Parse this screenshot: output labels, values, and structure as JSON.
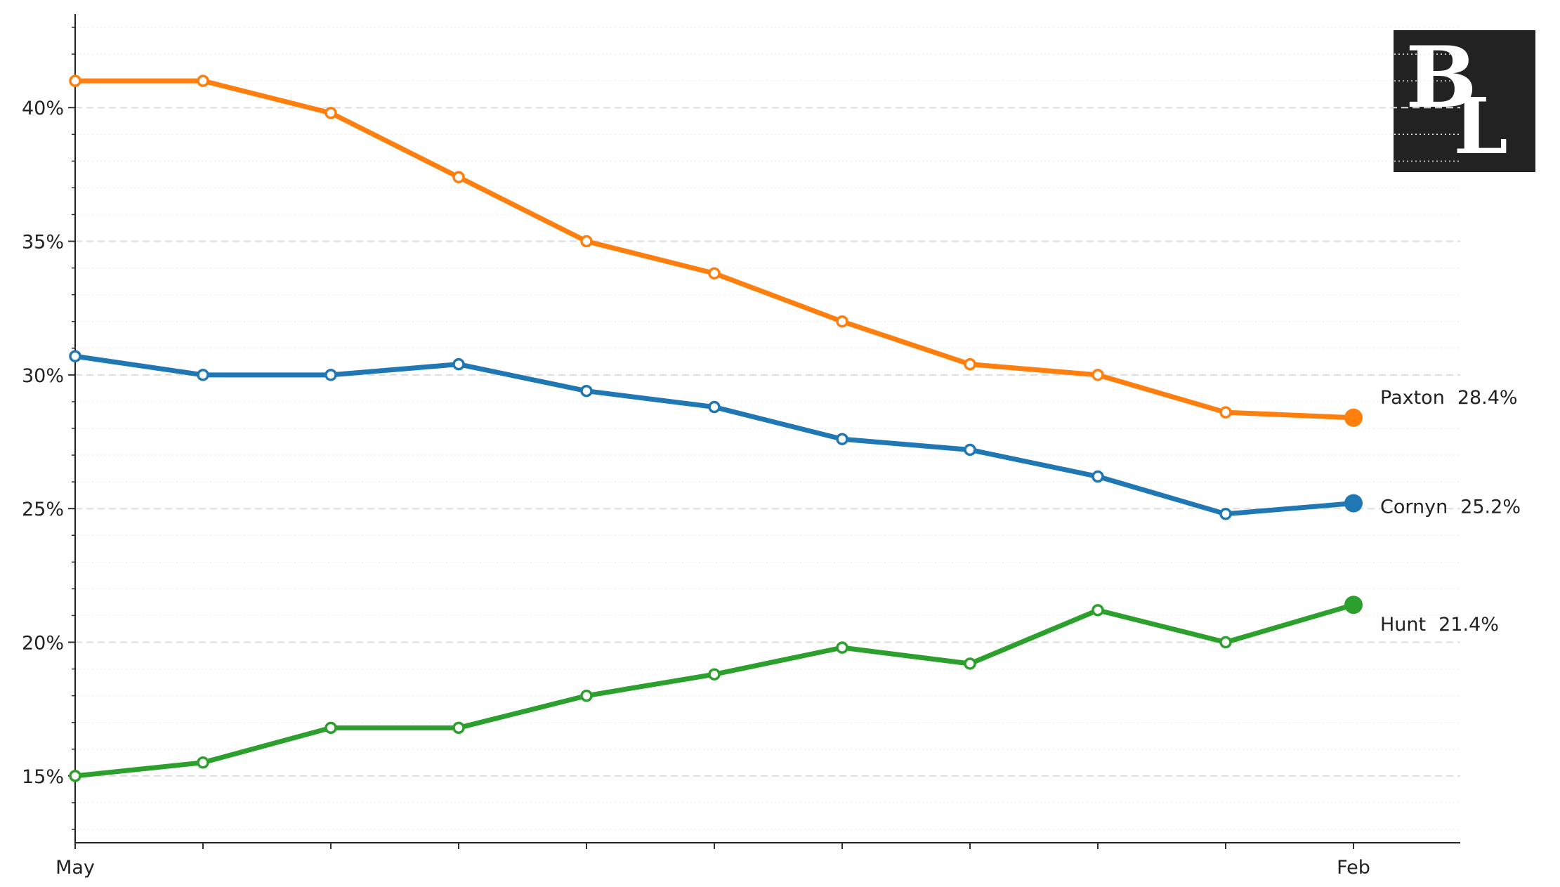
{
  "chart_data": {
    "type": "line",
    "categories": [
      "May",
      null,
      null,
      null,
      null,
      null,
      null,
      null,
      null,
      null,
      "Feb"
    ],
    "series": [
      {
        "name": "Paxton",
        "color": "#ff7f0e",
        "values": [
          41,
          41,
          39.8,
          37.4,
          35,
          33.8,
          32,
          30.4,
          30,
          28.6,
          28.4
        ],
        "value_labels": [
          null,
          null,
          null,
          null,
          null,
          null,
          null,
          null,
          null,
          null,
          "28.4%"
        ]
      },
      {
        "name": "Cornyn",
        "color": "#1f77b4",
        "values": [
          30.7,
          30,
          30,
          30.4,
          29.4,
          28.8,
          27.6,
          27.2,
          26.2,
          24.8,
          25.2
        ],
        "value_labels": [
          null,
          null,
          null,
          null,
          null,
          null,
          null,
          null,
          null,
          null,
          "25.2%"
        ]
      },
      {
        "name": "Hunt",
        "color": "#2ca02c",
        "values": [
          15,
          15.5,
          16.8,
          16.8,
          18,
          18.8,
          19.8,
          19.2,
          21.2,
          20,
          21.4
        ],
        "value_labels": [
          null,
          null,
          null,
          null,
          null,
          null,
          null,
          null,
          null,
          null,
          "21.4%"
        ]
      }
    ],
    "ylim": [
      12.5,
      43.5
    ],
    "yticks": [
      {
        "value": 15,
        "label": "15%"
      },
      {
        "value": 20,
        "label": "20%"
      },
      {
        "value": 25,
        "label": "25%"
      },
      {
        "value": 30,
        "label": "30%"
      },
      {
        "value": 35,
        "label": "35%"
      },
      {
        "value": 40,
        "label": "40%"
      }
    ],
    "minor_yticks": [
      13,
      14,
      16,
      17,
      18,
      19,
      21,
      22,
      23,
      24,
      26,
      27,
      28,
      29,
      31,
      32,
      33,
      34,
      36,
      37,
      38,
      39,
      41,
      42,
      43
    ],
    "grid": true
  },
  "logo": {
    "top": "B",
    "bottom": "L"
  }
}
